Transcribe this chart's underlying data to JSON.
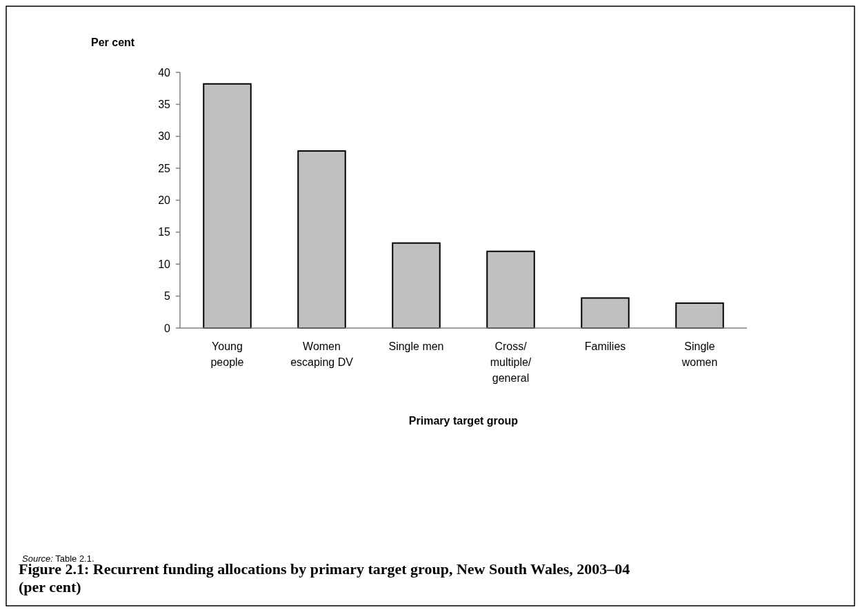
{
  "chart_data": {
    "type": "bar",
    "title": "Figure 2.1: Recurrent funding allocations by primary target group, New South Wales, 2003–04 (per cent)",
    "ylabel": "Per cent",
    "xlabel": "Primary target group",
    "annotations": [
      "Source: Table 2.1."
    ],
    "categories": [
      "Young people",
      "Women escaping DV",
      "Single men",
      "Cross/multiple/general",
      "Families",
      "Single women"
    ],
    "values": [
      38.2,
      27.7,
      13.3,
      12.0,
      4.7,
      3.9
    ],
    "color": "#c0c0c0",
    "ylim": [
      0,
      40
    ],
    "yticks": [
      0,
      5,
      10,
      15,
      20,
      25,
      30,
      35,
      40
    ],
    "grid": false
  }
}
